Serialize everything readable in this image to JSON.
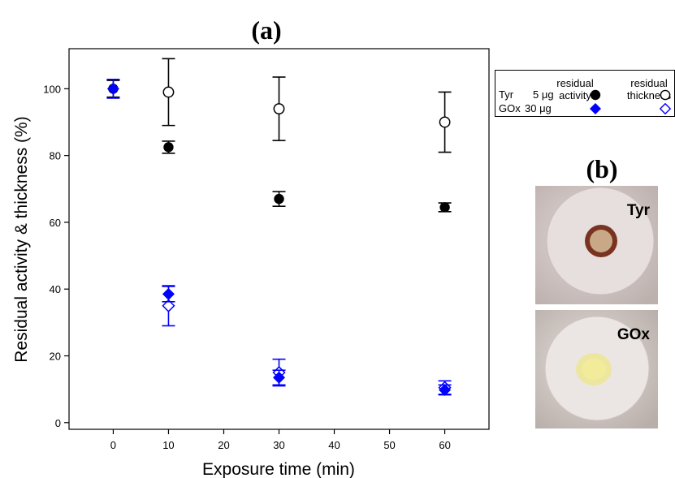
{
  "panel_a_label": "(a)",
  "panel_b_label": "(b)",
  "legend": {
    "header_activity": [
      "residual",
      "activity"
    ],
    "header_thickness": [
      "residual",
      "thickness"
    ],
    "rows": [
      {
        "enzyme": "Tyr",
        "amount": "5 μg"
      },
      {
        "enzyme": "GOx",
        "amount": "30 μg"
      }
    ]
  },
  "photos": [
    {
      "label": "Tyr"
    },
    {
      "label": "GOx"
    }
  ],
  "colors": {
    "tyr": "#000000",
    "gox": "#0000ff"
  },
  "chart_data": {
    "type": "scatter",
    "xlabel": "Exposure time (min)",
    "ylabel": "Residual activity & thickness (%)",
    "xlim": [
      -8,
      68
    ],
    "ylim": [
      -2,
      112
    ],
    "xticks": [
      0,
      10,
      20,
      30,
      40,
      50,
      60
    ],
    "yticks": [
      0,
      20,
      40,
      60,
      80,
      100
    ],
    "series": [
      {
        "name": "Tyr residual activity",
        "marker": "circle-filled",
        "color": "#000000",
        "points": [
          {
            "x": 0,
            "y": 100,
            "err": 2.5
          },
          {
            "x": 10,
            "y": 82.5,
            "err": 1.8
          },
          {
            "x": 30,
            "y": 67,
            "err": 2.2
          },
          {
            "x": 60,
            "y": 64.5,
            "err": 1.3
          }
        ]
      },
      {
        "name": "Tyr residual thickness",
        "marker": "circle-open",
        "color": "#000000",
        "points": [
          {
            "x": 10,
            "y": 99,
            "err": 10
          },
          {
            "x": 30,
            "y": 94,
            "err": 9.5
          },
          {
            "x": 60,
            "y": 90,
            "err": 9
          }
        ]
      },
      {
        "name": "GOx residual activity",
        "marker": "diamond-filled",
        "color": "#0000ff",
        "points": [
          {
            "x": 0,
            "y": 100,
            "err": 2.8
          },
          {
            "x": 10,
            "y": 38.5,
            "err": 2.3
          },
          {
            "x": 30,
            "y": 13.5,
            "err": 2.2
          },
          {
            "x": 60,
            "y": 9.8,
            "err": 1.5
          }
        ]
      },
      {
        "name": "GOx residual thickness",
        "marker": "diamond-open",
        "color": "#0000ff",
        "points": [
          {
            "x": 10,
            "y": 35,
            "err": 6
          },
          {
            "x": 30,
            "y": 15,
            "err": 4
          },
          {
            "x": 60,
            "y": 10.5,
            "err": 2
          }
        ]
      }
    ]
  }
}
